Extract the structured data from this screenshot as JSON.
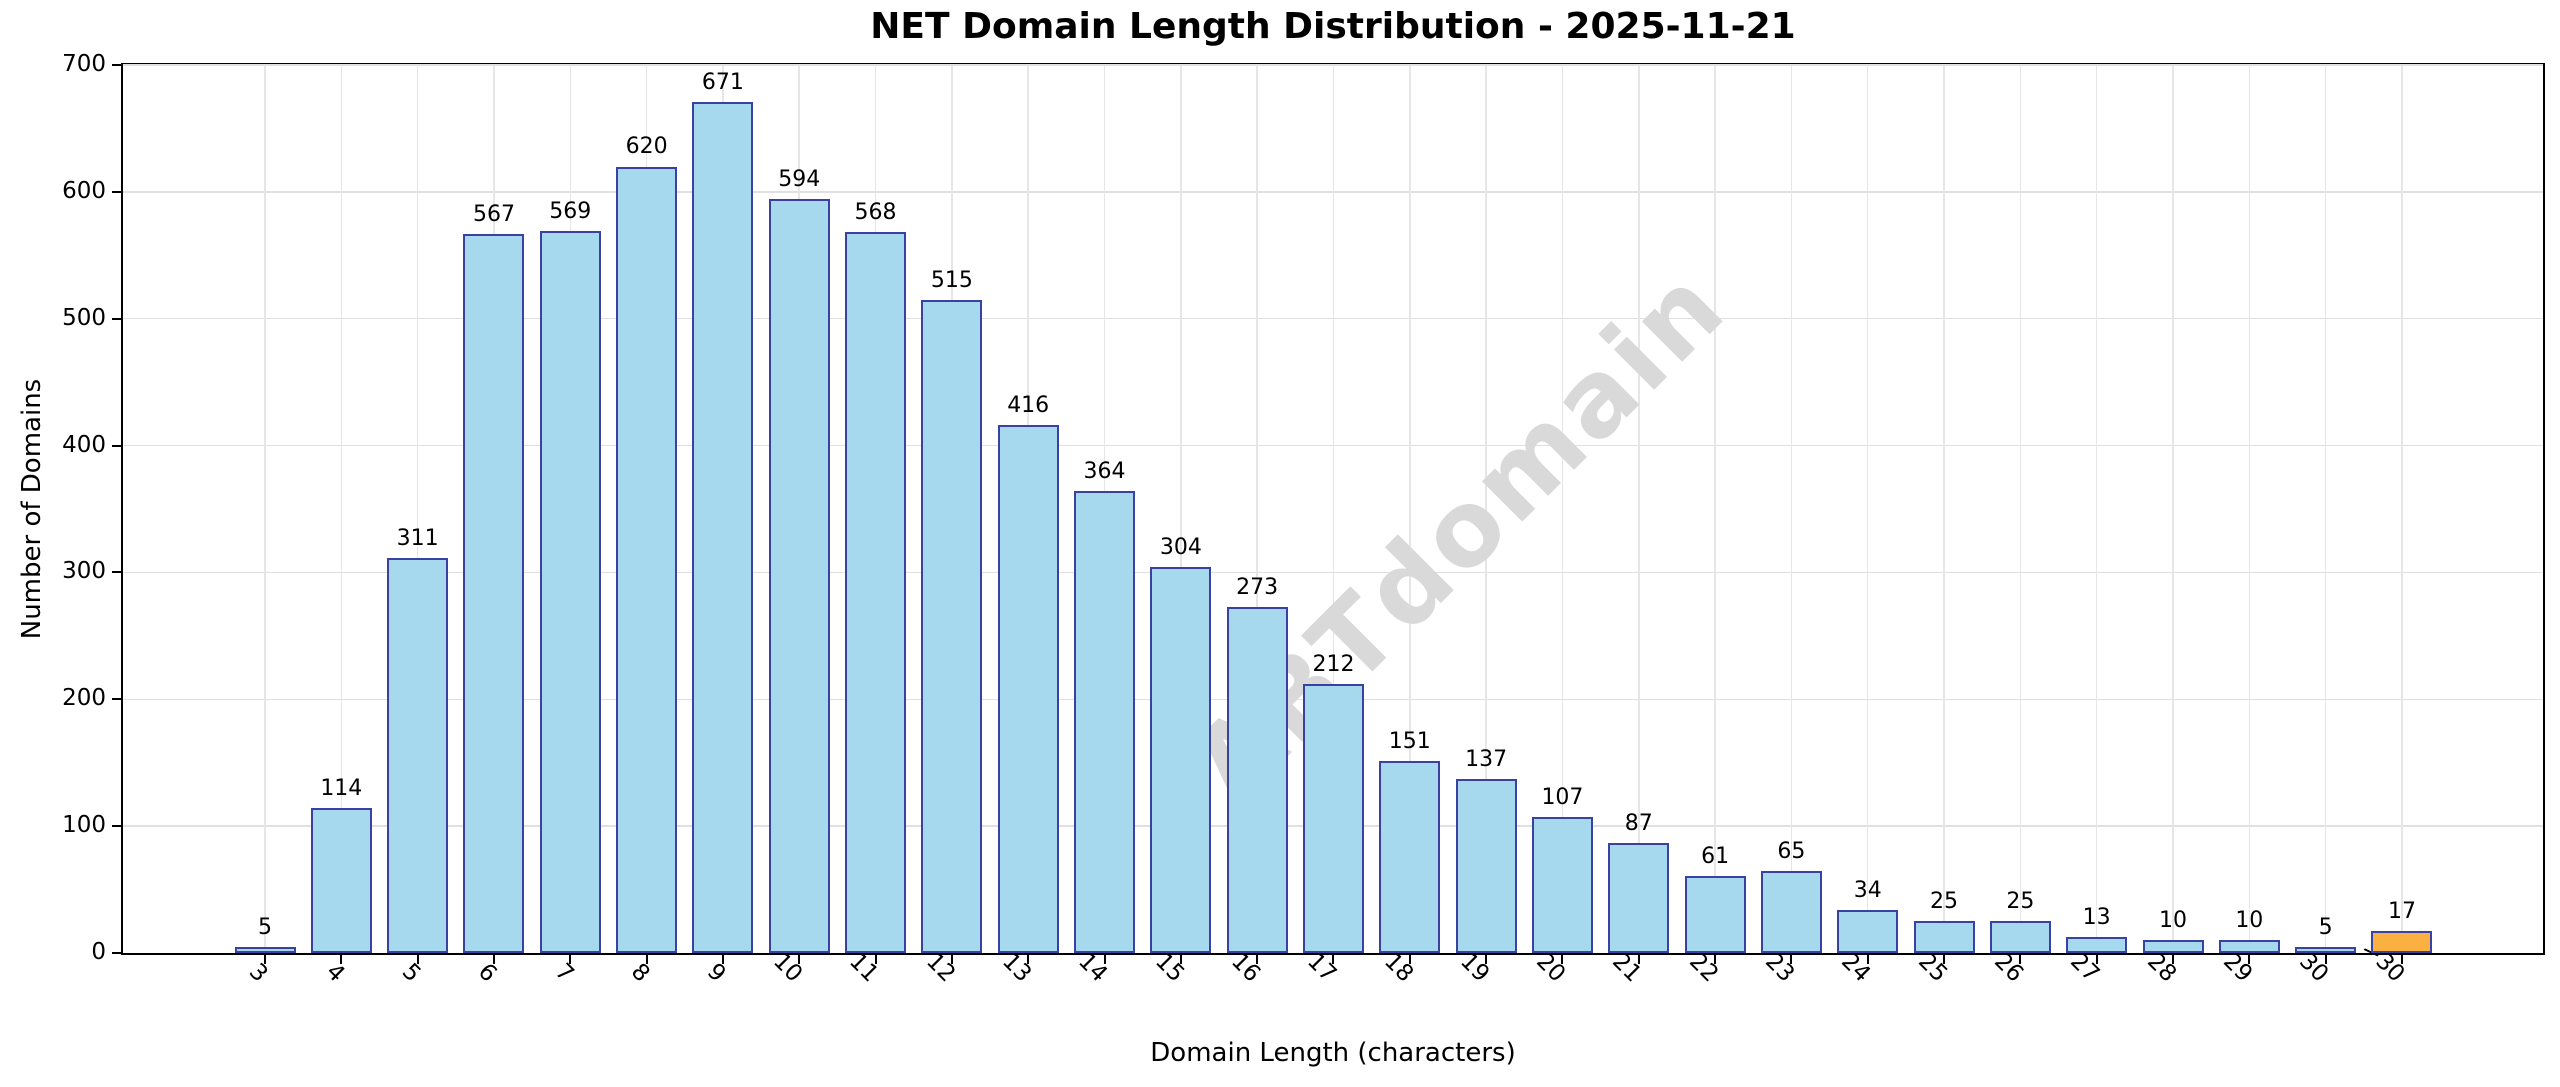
{
  "chart_data": {
    "type": "bar",
    "title": "NET Domain Length Distribution - 2025-11-21",
    "xlabel": "Domain Length (characters)",
    "ylabel": "Number of Domains",
    "watermark": "ABTdomain",
    "categories": [
      "3",
      "4",
      "5",
      "6",
      "7",
      "8",
      "9",
      "10",
      "11",
      "12",
      "13",
      "14",
      "15",
      "16",
      "17",
      "18",
      "19",
      "20",
      "21",
      "22",
      "23",
      "24",
      "25",
      "26",
      "27",
      "28",
      "29",
      "30",
      ">30"
    ],
    "values": [
      5,
      114,
      311,
      567,
      569,
      620,
      671,
      594,
      568,
      515,
      416,
      364,
      304,
      273,
      212,
      151,
      137,
      107,
      87,
      61,
      65,
      34,
      25,
      25,
      13,
      10,
      10,
      5,
      17
    ],
    "data_labels_shown": true,
    "ylim": [
      0,
      700
    ],
    "yticks": [
      0,
      100,
      200,
      300,
      400,
      500,
      600,
      700
    ],
    "grid": true,
    "legend": "none",
    "colors": {
      "bar_fill": "#a6d8ee",
      "bar_edge": "#3a41a0",
      "highlight_fill": "#fbb042",
      "highlight_category": ">30",
      "grid": "#e0e0e0",
      "spine": "#000000",
      "watermark": "#d9d9d9",
      "background": "#ffffff"
    }
  }
}
